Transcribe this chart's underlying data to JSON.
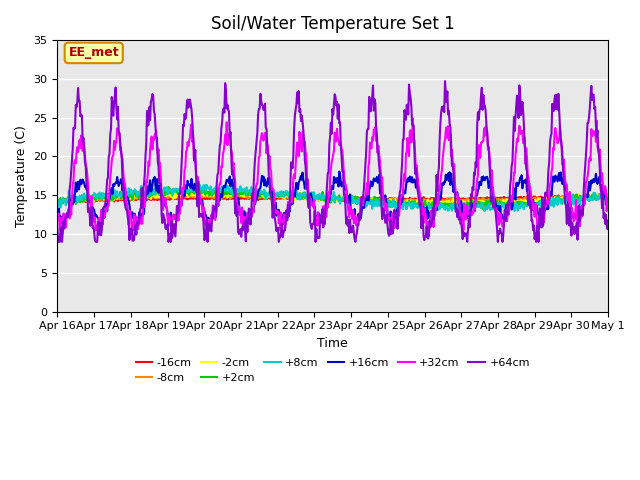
{
  "title": "Soil/Water Temperature Set 1",
  "xlabel": "Time",
  "ylabel": "Temperature (C)",
  "ylim": [
    0,
    35
  ],
  "yticks": [
    0,
    5,
    10,
    15,
    20,
    25,
    30,
    35
  ],
  "date_labels": [
    "Apr 16",
    "Apr 17",
    "Apr 18",
    "Apr 19",
    "Apr 20",
    "Apr 21",
    "Apr 22",
    "Apr 23",
    "Apr 24",
    "Apr 25",
    "Apr 26",
    "Apr 27",
    "Apr 28",
    "Apr 29",
    "Apr 30",
    "May 1"
  ],
  "xtick_positions": [
    0,
    1,
    2,
    3,
    4,
    5,
    6,
    7,
    8,
    9,
    10,
    11,
    12,
    13,
    14,
    15
  ],
  "annotation_text": "EE_met",
  "annotation_bg": "#ffffaa",
  "annotation_border": "#cc8800",
  "annotation_text_color": "#aa0000",
  "series": {
    "-16cm": {
      "color": "#ff0000",
      "lw": 1.5
    },
    "-8cm": {
      "color": "#ff8800",
      "lw": 1.5
    },
    "-2cm": {
      "color": "#ffff00",
      "lw": 1.5
    },
    "+2cm": {
      "color": "#00cc00",
      "lw": 1.5
    },
    "+8cm": {
      "color": "#00cccc",
      "lw": 1.5
    },
    "+16cm": {
      "color": "#0000cc",
      "lw": 1.5
    },
    "+32cm": {
      "color": "#ff00ff",
      "lw": 1.5
    },
    "+64cm": {
      "color": "#8800cc",
      "lw": 1.5
    }
  },
  "n_points": 720
}
